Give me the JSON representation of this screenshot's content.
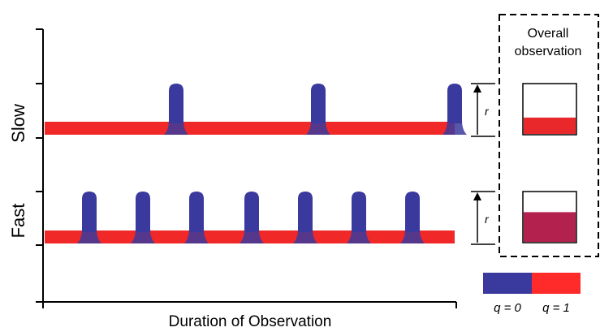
{
  "rows": [
    {
      "label": "Slow",
      "spike_count": 3,
      "spike_color": "#3a3a9e"
    },
    {
      "label": "Fast",
      "spike_count": 7,
      "spike_color": "#3a3a9e"
    }
  ],
  "x_axis_label": "Duration of Observation",
  "rate_label": "r",
  "overall": {
    "title_line1": "Overall",
    "title_line2": "observation",
    "slow_fill_fraction": 0.33,
    "fast_fill_fraction": 0.6,
    "slow_fill_color": "#e8282a",
    "fast_fill_color": "#b3224e"
  },
  "legend": {
    "q0_label": "q = 0",
    "q1_label": "q = 1",
    "q0_color": "#3a3a9e",
    "q1_color": "#ff2a2a"
  },
  "colors": {
    "baseline": "#f02828",
    "spike": "#3a3a9e"
  }
}
